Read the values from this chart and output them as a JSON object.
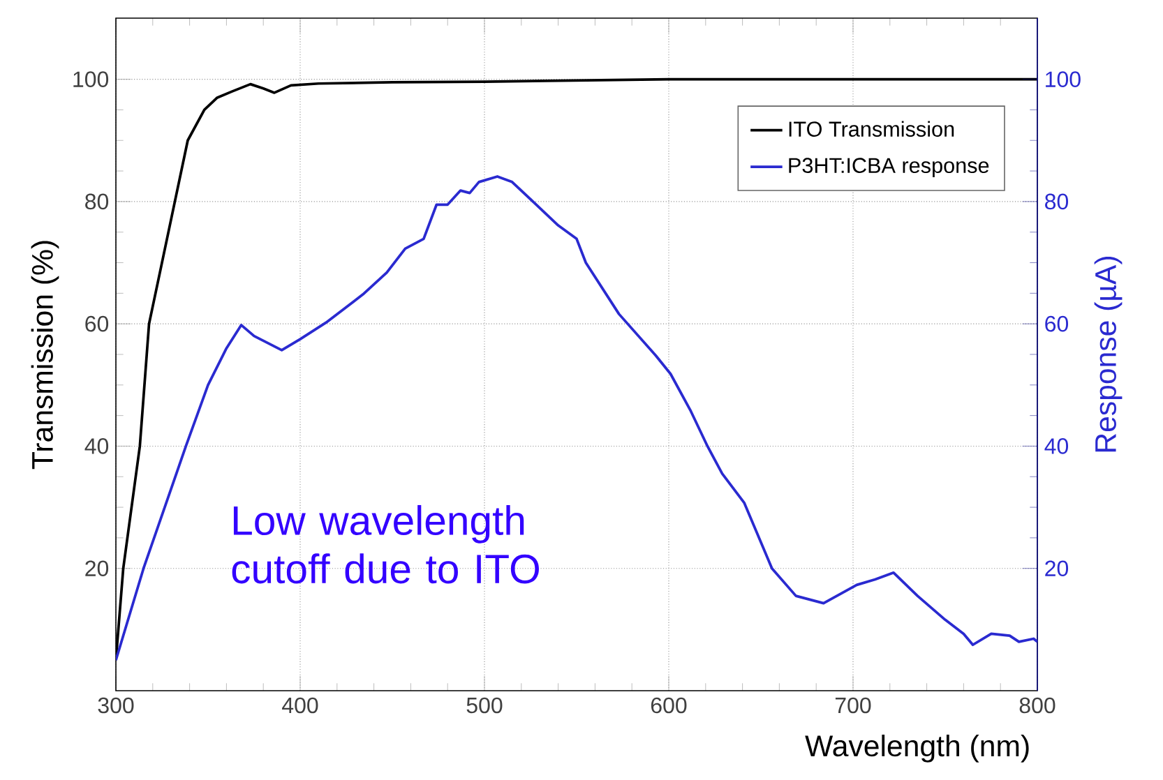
{
  "chart_data": {
    "type": "line",
    "xlabel": "Wavelength (nm)",
    "ylabel": "Transmission (%)",
    "y2label": "Response (µA)",
    "xlim": [
      300,
      800
    ],
    "xticks": [
      300,
      400,
      500,
      600,
      700,
      800
    ],
    "ylim": [
      0,
      110
    ],
    "yticks": [
      20,
      40,
      60,
      80,
      100
    ],
    "y2lim": [
      0,
      110
    ],
    "y2ticks": [
      20,
      40,
      60,
      80,
      100
    ],
    "grid": true,
    "legend": "top right",
    "annotations": [
      "Low wavelength cutoff due to ITO"
    ],
    "series": [
      {
        "name": "ITO Transmission",
        "color": "#000000",
        "axis": "y",
        "x": [
          300,
          304,
          313,
          318,
          325,
          332,
          339,
          348,
          355,
          363,
          373,
          380,
          386,
          395,
          410,
          450,
          500,
          550,
          600,
          800
        ],
        "values": [
          5,
          20,
          40,
          60,
          70,
          80,
          90,
          95,
          97,
          98,
          99.2,
          98.5,
          97.8,
          99,
          99.3,
          99.5,
          99.6,
          99.8,
          100,
          100
        ]
      },
      {
        "name": "P3HT:ICBA response",
        "color": "#2a2ad0",
        "axis": "y2",
        "x": [
          300,
          315,
          338,
          350,
          360,
          368,
          375,
          390,
          400,
          414,
          434,
          447,
          457,
          467,
          474,
          480,
          487,
          492,
          497,
          507,
          515,
          527,
          540,
          550,
          555,
          573,
          593,
          601,
          612,
          621,
          629,
          641,
          656,
          669,
          684,
          702,
          712,
          722,
          735,
          750,
          760,
          765,
          775,
          785,
          790,
          798,
          800
        ],
        "values": [
          5,
          20,
          40,
          50,
          56,
          59.8,
          58,
          55.7,
          57.5,
          60.2,
          64.8,
          68.4,
          72.3,
          73.9,
          79.5,
          79.5,
          81.8,
          81.4,
          83.2,
          84.1,
          83.2,
          79.8,
          76.1,
          73.9,
          70,
          61.6,
          54.8,
          51.8,
          45.7,
          40,
          35.5,
          30.7,
          20,
          15.5,
          14.3,
          17.3,
          18.2,
          19.3,
          15.5,
          11.6,
          9.3,
          7.5,
          9.3,
          9,
          8,
          8.5,
          8
        ]
      }
    ]
  }
}
